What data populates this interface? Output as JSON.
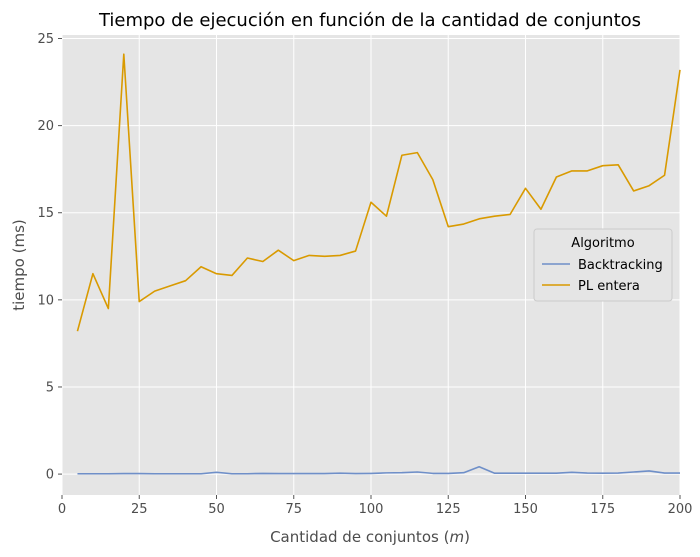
{
  "chart_data": {
    "type": "line",
    "title": "Tiempo de ejecución en función de la cantidad de conjuntos",
    "xlabel_prefix": "Cantidad de conjuntos (",
    "xlabel_var": "m",
    "xlabel_suffix": ")",
    "ylabel": "tiempo (ms)",
    "xlim": [
      0,
      200
    ],
    "ylim": [
      -1.2,
      25.2
    ],
    "xticks": [
      0,
      25,
      50,
      75,
      100,
      125,
      150,
      175,
      200
    ],
    "xtick_labels": [
      "0",
      "25",
      "50",
      "75",
      "100",
      "125",
      "150",
      "175",
      "200"
    ],
    "yticks": [
      0,
      5,
      10,
      15,
      20,
      25
    ],
    "ytick_labels": [
      "0",
      "5",
      "10",
      "15",
      "20",
      "25"
    ],
    "grid": true,
    "legend": {
      "title": "Algoritmo",
      "position": "center-right"
    },
    "x": [
      5,
      10,
      15,
      20,
      25,
      30,
      35,
      40,
      45,
      50,
      55,
      60,
      65,
      70,
      75,
      80,
      85,
      90,
      95,
      100,
      105,
      110,
      115,
      120,
      125,
      130,
      135,
      140,
      145,
      150,
      155,
      160,
      165,
      170,
      175,
      180,
      185,
      190,
      195,
      200
    ],
    "series": [
      {
        "name": "Backtracking",
        "color": "#6f8fc8",
        "values": [
          0.02,
          0.02,
          0.02,
          0.03,
          0.03,
          0.02,
          0.02,
          0.02,
          0.02,
          0.1,
          0.02,
          0.02,
          0.04,
          0.03,
          0.03,
          0.03,
          0.03,
          0.05,
          0.03,
          0.04,
          0.07,
          0.08,
          0.12,
          0.04,
          0.04,
          0.08,
          0.42,
          0.05,
          0.05,
          0.05,
          0.05,
          0.05,
          0.1,
          0.06,
          0.05,
          0.06,
          0.12,
          0.18,
          0.06,
          0.06
        ]
      },
      {
        "name": "PL entera",
        "color": "#d99a00",
        "values": [
          8.2,
          11.5,
          9.5,
          24.1,
          9.9,
          10.5,
          10.8,
          11.1,
          11.9,
          11.5,
          11.4,
          12.4,
          12.2,
          12.85,
          12.25,
          12.55,
          12.5,
          12.55,
          12.8,
          15.6,
          14.8,
          18.3,
          18.45,
          16.9,
          14.2,
          14.35,
          14.65,
          14.8,
          14.9,
          16.4,
          15.2,
          17.05,
          17.4,
          17.4,
          17.7,
          17.75,
          16.25,
          16.55,
          17.15,
          23.2
        ]
      }
    ]
  }
}
